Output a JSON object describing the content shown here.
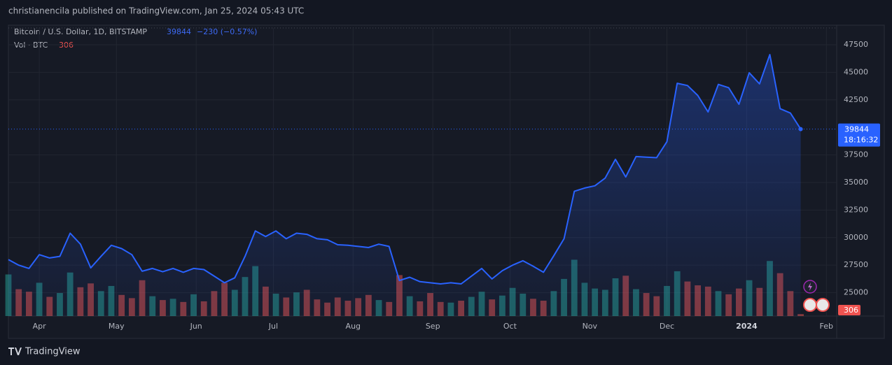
{
  "chart_data": {
    "type": "line",
    "author_line": "christianencila published on TradingView.com, Jan 25, 2024 05:43 UTC",
    "change_label": "−230 (−0.57%)",
    "countdown": "18:16:32",
    "brand": "TradingView",
    "up_color": "#26a69a",
    "down_color": "#ef5350",
    "grid": true,
    "xlim": [
      0,
      80.5
    ],
    "xticks": [
      {
        "value": 3,
        "label": "Apr"
      },
      {
        "value": 10.5,
        "label": "May"
      },
      {
        "value": 18.25,
        "label": "Jun"
      },
      {
        "value": 25.75,
        "label": "Jul"
      },
      {
        "value": 33.5,
        "label": "Aug"
      },
      {
        "value": 41.25,
        "label": "Sep"
      },
      {
        "value": 48.75,
        "label": "Oct"
      },
      {
        "value": 56.5,
        "label": "Nov"
      },
      {
        "value": 64,
        "label": "Dec"
      },
      {
        "value": 71.75,
        "label": "2024"
      },
      {
        "value": 79.5,
        "label": "Feb"
      }
    ],
    "ylim": [
      22880,
      49020
    ],
    "yticks": [
      25000,
      27500,
      30000,
      32500,
      35000,
      37500,
      42500,
      45000,
      47500
    ],
    "y2lim": [
      0,
      45000
    ],
    "series": [
      {
        "name": "Bitcoin / U.S. Dollar, 1D, BITSTAMP",
        "color": "#2962ff",
        "values": [
          28000,
          27500,
          27200,
          28450,
          28150,
          28300,
          30400,
          29400,
          27250,
          28300,
          29300,
          29000,
          28450,
          26950,
          27200,
          26900,
          27200,
          26850,
          27200,
          27100,
          26500,
          25900,
          26350,
          28300,
          30600,
          30100,
          30600,
          29900,
          30400,
          30300,
          29900,
          29800,
          29350,
          29300,
          29200,
          29100,
          29400,
          29200,
          26100,
          26400,
          26000,
          25900,
          25800,
          25900,
          25800,
          26500,
          27200,
          26250,
          27000,
          27500,
          27900,
          27400,
          26850,
          28350,
          29900,
          34200,
          34500,
          34700,
          35400,
          37100,
          35500,
          37350,
          37300,
          37250,
          38700,
          44000,
          43800,
          42900,
          41400,
          43900,
          43600,
          42100,
          44950,
          43950,
          46600,
          41700,
          41300,
          39844
        ]
      },
      {
        "name": "Vol · BTC",
        "axis": "y2",
        "values": [
          6500,
          4200,
          3800,
          5200,
          3000,
          3600,
          6800,
          4500,
          5100,
          3900,
          4700,
          3300,
          2800,
          5600,
          3100,
          2500,
          2700,
          2200,
          3400,
          2300,
          3900,
          5200,
          4100,
          6100,
          7800,
          4600,
          3500,
          2900,
          3700,
          4100,
          2600,
          2100,
          2900,
          2400,
          2800,
          3300,
          2500,
          2200,
          6400,
          3100,
          2300,
          3600,
          2200,
          2100,
          2400,
          3000,
          3800,
          2600,
          3200,
          4400,
          3500,
          2700,
          2400,
          3900,
          5800,
          8800,
          5200,
          4300,
          4100,
          5900,
          6300,
          4200,
          3600,
          3100,
          4700,
          7000,
          5400,
          4800,
          4600,
          3900,
          3400,
          4300,
          5600,
          4400,
          8600,
          6700,
          3900,
          306
        ]
      }
    ]
  }
}
